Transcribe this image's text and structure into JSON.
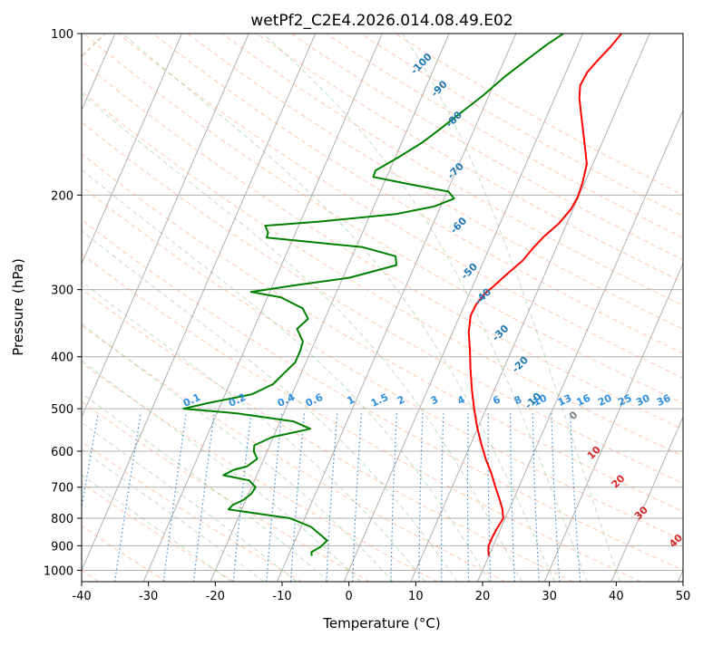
{
  "chart_data": {
    "type": "line",
    "subtype": "skew-t log-p diagram",
    "title": "wetPf2_C2E4.2026.014.08.49.E02",
    "xlabel": "Temperature (°C)",
    "ylabel": "Pressure (hPa)",
    "xlim": [
      -40,
      50
    ],
    "ylim": [
      1050,
      100
    ],
    "y_scale": "log",
    "x_ticks": [
      -40,
      -30,
      -20,
      -10,
      0,
      10,
      20,
      30,
      40,
      50
    ],
    "y_ticks": [
      100,
      200,
      300,
      400,
      500,
      600,
      700,
      800,
      900,
      1000
    ],
    "grid": true,
    "series": [
      {
        "role": "temperature",
        "color": "#ff0000",
        "points": [
          [
            940,
            20.0
          ],
          [
            920,
            19.6
          ],
          [
            900,
            19.3
          ],
          [
            870,
            19.3
          ],
          [
            840,
            19.4
          ],
          [
            800,
            19.7
          ],
          [
            770,
            19.0
          ],
          [
            740,
            18.0
          ],
          [
            700,
            16.5
          ],
          [
            660,
            15.0
          ],
          [
            620,
            13.2
          ],
          [
            580,
            11.5
          ],
          [
            540,
            9.8
          ],
          [
            500,
            8.2
          ],
          [
            460,
            6.6
          ],
          [
            420,
            5.0
          ],
          [
            390,
            3.8
          ],
          [
            360,
            2.4
          ],
          [
            335,
            1.6
          ],
          [
            320,
            1.7
          ],
          [
            305,
            2.3
          ],
          [
            295,
            3.2
          ],
          [
            280,
            4.4
          ],
          [
            265,
            5.8
          ],
          [
            250,
            6.6
          ],
          [
            238,
            7.5
          ],
          [
            226,
            8.8
          ],
          [
            212,
            9.7
          ],
          [
            202,
            9.9
          ],
          [
            190,
            9.7
          ],
          [
            175,
            9.1
          ],
          [
            160,
            7.4
          ],
          [
            145,
            5.5
          ],
          [
            132,
            3.7
          ],
          [
            125,
            3.0
          ],
          [
            118,
            3.2
          ],
          [
            112,
            4.0
          ],
          [
            106,
            5.0
          ],
          [
            100,
            5.8
          ]
        ]
      },
      {
        "role": "dewpoint",
        "color": "#008000",
        "points": [
          [
            940,
            -6.5
          ],
          [
            925,
            -6.8
          ],
          [
            905,
            -5.8
          ],
          [
            880,
            -5.2
          ],
          [
            860,
            -6.5
          ],
          [
            830,
            -8.5
          ],
          [
            800,
            -12.2
          ],
          [
            785,
            -17.0
          ],
          [
            770,
            -22.0
          ],
          [
            755,
            -21.6
          ],
          [
            740,
            -20.4
          ],
          [
            720,
            -19.6
          ],
          [
            700,
            -19.4
          ],
          [
            680,
            -20.8
          ],
          [
            665,
            -25.0
          ],
          [
            650,
            -23.8
          ],
          [
            640,
            -22.0
          ],
          [
            620,
            -21.0
          ],
          [
            600,
            -22.0
          ],
          [
            585,
            -22.3
          ],
          [
            565,
            -20.2
          ],
          [
            545,
            -15.0
          ],
          [
            528,
            -18.0
          ],
          [
            510,
            -27.0
          ],
          [
            500,
            -35.3
          ],
          [
            488,
            -32.0
          ],
          [
            470,
            -26.0
          ],
          [
            450,
            -23.5
          ],
          [
            430,
            -22.6
          ],
          [
            410,
            -21.6
          ],
          [
            390,
            -21.6
          ],
          [
            375,
            -21.8
          ],
          [
            355,
            -23.5
          ],
          [
            340,
            -22.5
          ],
          [
            325,
            -24.0
          ],
          [
            310,
            -28.0
          ],
          [
            303,
            -32.8
          ],
          [
            295,
            -27.0
          ],
          [
            285,
            -19.0
          ],
          [
            270,
            -12.8
          ],
          [
            260,
            -13.5
          ],
          [
            250,
            -19.0
          ],
          [
            240,
            -34.0
          ],
          [
            235,
            -34.1
          ],
          [
            228,
            -35.0
          ],
          [
            224,
            -27.0
          ],
          [
            217,
            -16.2
          ],
          [
            210,
            -11.0
          ],
          [
            203,
            -8.5
          ],
          [
            197,
            -9.8
          ],
          [
            190,
            -17.0
          ],
          [
            185,
            -22.0
          ],
          [
            180,
            -22.1
          ],
          [
            170,
            -19.5
          ],
          [
            160,
            -17.0
          ],
          [
            150,
            -15.0
          ],
          [
            140,
            -13.0
          ],
          [
            130,
            -10.8
          ],
          [
            120,
            -8.8
          ],
          [
            112,
            -6.7
          ],
          [
            105,
            -4.7
          ],
          [
            100,
            -2.9
          ]
        ]
      }
    ],
    "dry_adiabat_labels": [
      "-100",
      "-90",
      "-80",
      "-70",
      "-60",
      "-50",
      "-40",
      "-30",
      "-20",
      "-10",
      "0",
      "10",
      "20",
      "30",
      "40"
    ],
    "dry_adiabat_label_positions": [
      [
        115,
        -21.7
      ],
      [
        128,
        -17.4
      ],
      [
        146,
        -13.2
      ],
      [
        182,
        -9.6
      ],
      [
        230,
        -5.6
      ],
      [
        280,
        -1.0
      ],
      [
        312,
        2.7
      ],
      [
        365,
        7.7
      ],
      [
        418,
        12.7
      ],
      [
        488,
        17.0
      ],
      [
        520,
        24.0
      ],
      [
        610,
        29.5
      ],
      [
        690,
        35.0
      ],
      [
        790,
        40.5
      ],
      [
        890,
        47.5
      ]
    ],
    "mixing_ratio_labels": [
      "0.1",
      "0.2",
      "0.4",
      "0.6",
      "1",
      "1.5",
      "2",
      "3",
      "4",
      "6",
      "8",
      "10",
      "13",
      "16",
      "20",
      "25",
      "30",
      "36"
    ],
    "mixing_ratio_label_temps": [
      -23.3,
      -16.5,
      -9.2,
      -5.0,
      0.5,
      4.8,
      8.0,
      13.0,
      17.0,
      22.3,
      25.5,
      28.8,
      32.5,
      35.3,
      38.5,
      41.5,
      44.2,
      47.3
    ],
    "mixing_ratio_label_pressure": 495
  }
}
